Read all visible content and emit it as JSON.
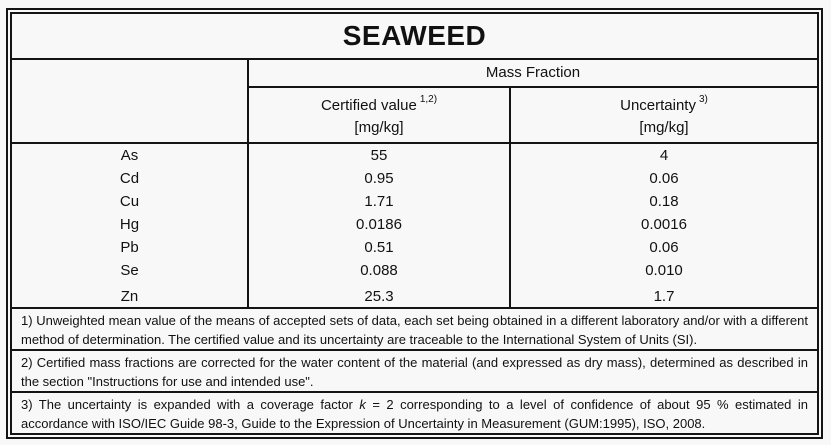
{
  "document": {
    "title": "SEAWEED",
    "table": {
      "group_header": "Mass Fraction",
      "columns": [
        {
          "label": "Certified value",
          "sup": "1,2)",
          "unit": "[mg/kg]"
        },
        {
          "label": "Uncertainty",
          "sup": "3)",
          "unit": "[mg/kg]"
        }
      ],
      "rows": [
        {
          "element": "As",
          "certified": "55",
          "uncertainty": "4"
        },
        {
          "element": "Cd",
          "certified": "0.95",
          "uncertainty": "0.06"
        },
        {
          "element": "Cu",
          "certified": "1.71",
          "uncertainty": "0.18"
        },
        {
          "element": "Hg",
          "certified": "0.0186",
          "uncertainty": "0.0016"
        },
        {
          "element": "Pb",
          "certified": "0.51",
          "uncertainty": "0.06"
        },
        {
          "element": "Se",
          "certified": "0.088",
          "uncertainty": "0.010"
        },
        {
          "element": "Zn",
          "certified": "25.3",
          "uncertainty": "1.7"
        }
      ]
    },
    "footnotes": {
      "note1": "1) Unweighted mean value of the means of accepted sets of data, each set being obtained in a different laboratory and/or with a different method of determination. The certified value and its uncertainty are traceable to the International System of Units (SI).",
      "note2": "2) Certified mass fractions are corrected for the water content of the material (and expressed as dry mass), determined as described in the section \"Instructions for use and intended use\".",
      "note3_pre": "3) The uncertainty is expanded with a coverage factor ",
      "note3_k": "k",
      "note3_post": " = 2 corresponding to a level of confidence of about 95 % estimated in accordance with ISO/IEC Guide 98-3, Guide to the Expression of Uncertainty in Measurement (GUM:1995), ISO, 2008."
    },
    "colors": {
      "text": "#111111",
      "border": "#141414",
      "background": "#f8f8f8"
    }
  }
}
